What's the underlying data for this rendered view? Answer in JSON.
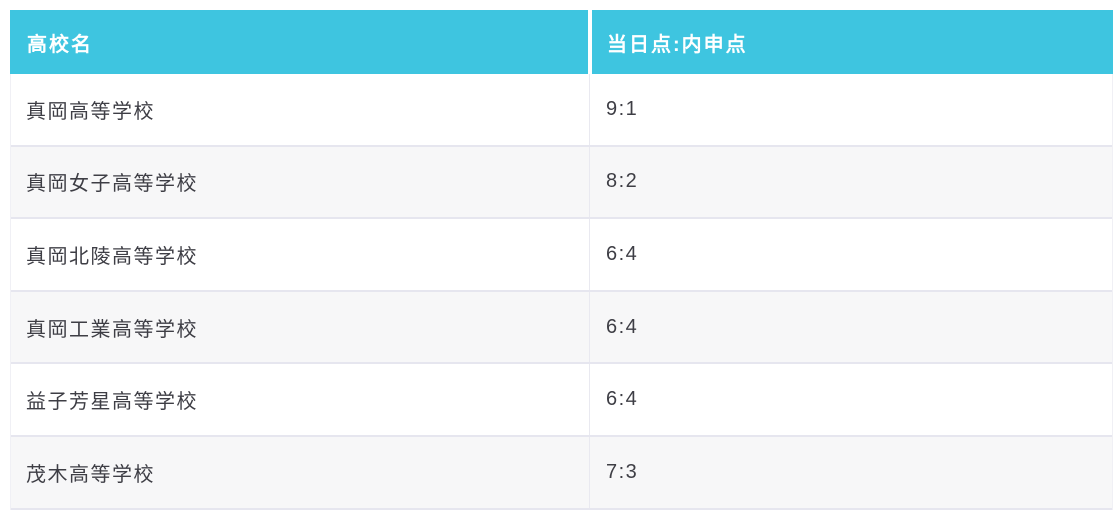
{
  "chart_data": {
    "type": "table",
    "columns": [
      "高校名",
      "当日点:内申点"
    ],
    "rows": [
      {
        "school": "真岡高等学校",
        "ratio": "9:1"
      },
      {
        "school": "真岡女子高等学校",
        "ratio": "8:2"
      },
      {
        "school": "真岡北陵高等学校",
        "ratio": "6:4"
      },
      {
        "school": "真岡工業高等学校",
        "ratio": "6:4"
      },
      {
        "school": "益子芳星高等学校",
        "ratio": "6:4"
      },
      {
        "school": "茂木高等学校",
        "ratio": "7:3"
      }
    ]
  },
  "colors": {
    "header_bg": "#3ec5e0",
    "header_text": "#ffffff",
    "body_text": "#3e3e45",
    "alt_row_bg": "#f7f7f8",
    "row_border": "#e6e6ef"
  }
}
